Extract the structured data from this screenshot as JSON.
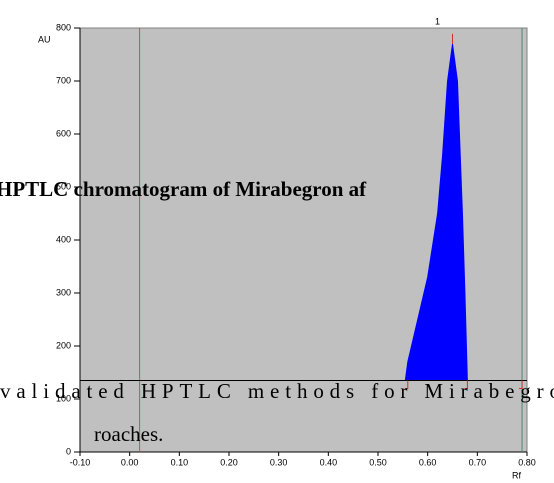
{
  "chart_data": {
    "type": "area",
    "y_label": "AU",
    "x_label": "Rf",
    "peak_label": "1",
    "x": [
      0.555,
      0.56,
      0.58,
      0.6,
      0.62,
      0.63,
      0.64,
      0.65,
      0.66,
      0.67,
      0.675,
      0.68
    ],
    "values": [
      135,
      170,
      250,
      330,
      450,
      560,
      700,
      770,
      700,
      450,
      300,
      135
    ],
    "color": "#0000ff",
    "baseline": 135,
    "vlines": [
      0.02,
      0.79
    ],
    "peak_bounds": [
      0.56,
      0.68
    ],
    "xlim": [
      -0.1,
      0.8
    ],
    "xticks": [
      {
        "value": -0.1,
        "label": "-0.10"
      },
      {
        "value": 0,
        "label": "0.00"
      },
      {
        "value": 0.1,
        "label": "0.10"
      },
      {
        "value": 0.2,
        "label": "0.20"
      },
      {
        "value": 0.3,
        "label": "0.30"
      },
      {
        "value": 0.4,
        "label": "0.40"
      },
      {
        "value": 0.5,
        "label": "0.50"
      },
      {
        "value": 0.6,
        "label": "0.60"
      },
      {
        "value": 0.7,
        "label": "0.70"
      },
      {
        "value": 0.8,
        "label": "0.80"
      }
    ],
    "ylim": [
      0,
      800
    ],
    "yticks": [
      0,
      100,
      200,
      300,
      400,
      500,
      600,
      700,
      800
    ],
    "annotations": [
      "HPTLC chromatogram of Mirabegron af",
      "validated HPTLC methods for Mirabegro",
      "roaches."
    ]
  }
}
